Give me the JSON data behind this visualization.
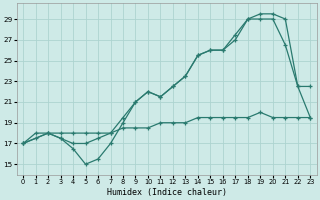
{
  "xlabel": "Humidex (Indice chaleur)",
  "bg_color": "#ceeae7",
  "grid_color": "#add4d0",
  "line_color": "#2a7a6f",
  "xlim": [
    -0.5,
    23.5
  ],
  "ylim": [
    14.0,
    30.5
  ],
  "yticks": [
    15,
    17,
    19,
    21,
    23,
    25,
    27,
    29
  ],
  "xticks": [
    0,
    1,
    2,
    3,
    4,
    5,
    6,
    7,
    8,
    9,
    10,
    11,
    12,
    13,
    14,
    15,
    16,
    17,
    18,
    19,
    20,
    21,
    22,
    23
  ],
  "line1_x": [
    0,
    1,
    2,
    3,
    4,
    5,
    6,
    7,
    8,
    9,
    10,
    11,
    12,
    13,
    14,
    15,
    16,
    17,
    18,
    19,
    20,
    21,
    22,
    23
  ],
  "line1_y": [
    17,
    18,
    18,
    17.5,
    16.5,
    15,
    15.5,
    17,
    19,
    21,
    22,
    21.5,
    22.5,
    23.5,
    25.5,
    26,
    26,
    27.5,
    29,
    29.5,
    29.5,
    29,
    22.5,
    19.5
  ],
  "line2_x": [
    0,
    2,
    3,
    4,
    5,
    6,
    7,
    8,
    9,
    10,
    11,
    12,
    13,
    14,
    15,
    16,
    17,
    18,
    19,
    20,
    21,
    22,
    23
  ],
  "line2_y": [
    17,
    18,
    17.5,
    17,
    17,
    17.5,
    18,
    19.5,
    21,
    22,
    21.5,
    22.5,
    23.5,
    25.5,
    26,
    26,
    27,
    29,
    29,
    29,
    26.5,
    22.5,
    22.5
  ],
  "line3_x": [
    0,
    1,
    2,
    3,
    4,
    5,
    6,
    7,
    8,
    9,
    10,
    11,
    12,
    13,
    14,
    15,
    16,
    17,
    18,
    19,
    20,
    21,
    22,
    23
  ],
  "line3_y": [
    17,
    17.5,
    18,
    18,
    18,
    18,
    18,
    18,
    18.5,
    18.5,
    18.5,
    19,
    19,
    19,
    19.5,
    19.5,
    19.5,
    19.5,
    19.5,
    20,
    19.5,
    19.5,
    19.5,
    19.5
  ]
}
